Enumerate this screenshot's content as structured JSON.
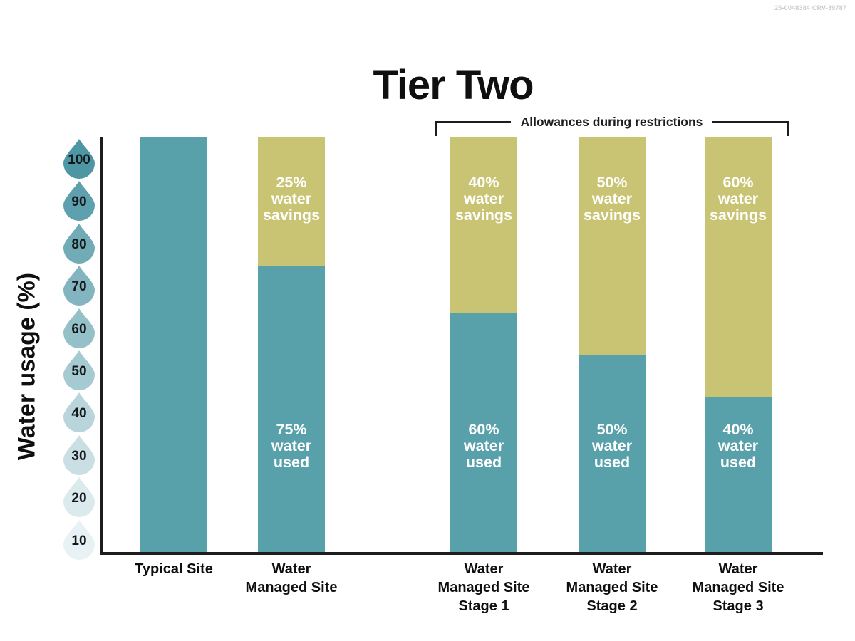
{
  "meta": {
    "corner_code": "25-0048384 CRV-39787"
  },
  "title": "Tier Two",
  "y_axis": {
    "label": "Water usage (%)",
    "tick_values": [
      100,
      90,
      80,
      70,
      60,
      50,
      40,
      30,
      20,
      10
    ]
  },
  "bracket": {
    "label": "Allowances during restrictions"
  },
  "colors": {
    "water_used": "#58a1ab",
    "water_savings": "#c9c473",
    "droplet_base_rgb": [
      77,
      150,
      164
    ],
    "axis": "#1d1d1b",
    "bar_text": "#ffffff",
    "corner_code": "#c9cdd0"
  },
  "bars": [
    {
      "slug": "typical-site",
      "category_label": "Typical Site",
      "used_pct": 100,
      "savings_pct": 0,
      "used_text": "",
      "savings_text": "",
      "drawn_used_frac": 1.0
    },
    {
      "slug": "water-managed-site",
      "category_label": "Water\nManaged Site",
      "used_pct": 75,
      "savings_pct": 25,
      "used_text": "75%\nwater\nused",
      "savings_text": "25%\nwater\nsavings",
      "drawn_used_frac": 0.69
    },
    {
      "slug": "water-managed-site-stage-1",
      "category_label": "Water\nManaged Site\nStage 1",
      "used_pct": 60,
      "savings_pct": 40,
      "used_text": "60%\nwater\nused",
      "savings_text": "40%\nwater\nsavings",
      "drawn_used_frac": 0.575
    },
    {
      "slug": "water-managed-site-stage-2",
      "category_label": "Water\nManaged Site\nStage 2",
      "used_pct": 50,
      "savings_pct": 50,
      "used_text": "50%\nwater\nused",
      "savings_text": "50%\nwater\nsavings",
      "drawn_used_frac": 0.475
    },
    {
      "slug": "water-managed-site-stage-3",
      "category_label": "Water\nManaged Site\nStage 3",
      "used_pct": 40,
      "savings_pct": 60,
      "used_text": "40%\nwater\nused",
      "savings_text": "60%\nwater\nsavings",
      "drawn_used_frac": 0.375
    }
  ],
  "chart_data": {
    "type": "bar",
    "stacked": true,
    "title": "Tier Two",
    "xlabel": "",
    "ylabel": "Water usage (%)",
    "ylim": [
      0,
      100
    ],
    "yticks": [
      10,
      20,
      30,
      40,
      50,
      60,
      70,
      80,
      90,
      100
    ],
    "grid": false,
    "legend": "none",
    "categories": [
      "Typical Site",
      "Water Managed Site",
      "Water Managed Site Stage 1",
      "Water Managed Site Stage 2",
      "Water Managed Site Stage 3"
    ],
    "series": [
      {
        "name": "water used",
        "color": "#58a1ab",
        "values": [
          100,
          75,
          60,
          50,
          40
        ]
      },
      {
        "name": "water savings",
        "color": "#c9c473",
        "values": [
          0,
          25,
          40,
          50,
          60
        ]
      }
    ],
    "annotation": {
      "text": "Allowances during restrictions",
      "covers": [
        "Water Managed Site Stage 1",
        "Water Managed Site Stage 2",
        "Water Managed Site Stage 3"
      ]
    }
  }
}
